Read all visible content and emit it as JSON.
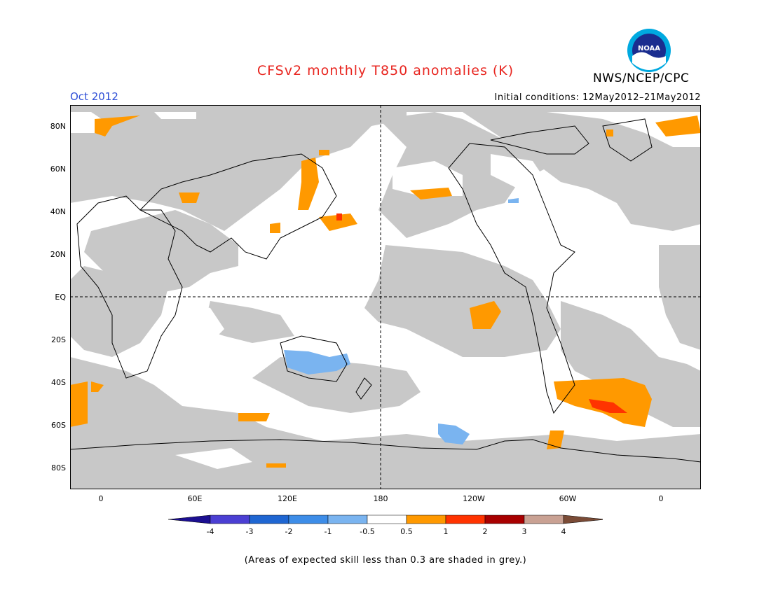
{
  "title": "CFSv2 monthly T850 anomalies (K)",
  "agency": "NWS/NCEP/CPC",
  "logo_text": "NOAA",
  "valid_month": "Oct 2012",
  "initial_conditions": "Initial conditions: 12May2012–21May2012",
  "footnote": "(Areas of expected skill less than 0.3 are shaded in grey.)",
  "lat_labels": [
    "80N",
    "60N",
    "40N",
    "20N",
    "EQ",
    "20S",
    "40S",
    "60S",
    "80S"
  ],
  "lon_labels": [
    "0",
    "60E",
    "120E",
    "180",
    "120W",
    "60W",
    "0"
  ],
  "colorbar": {
    "labels": [
      "-4",
      "-3",
      "-2",
      "-1",
      "-0.5",
      "0.5",
      "1",
      "2",
      "3",
      "4"
    ],
    "colors": [
      "#1c0f91",
      "#4b3fd3",
      "#1f66d2",
      "#3d8de8",
      "#7ab4f0",
      "#ffffff",
      "#ff9900",
      "#ff3300",
      "#a80000",
      "#c9a193",
      "#7a4b36"
    ]
  },
  "colors": {
    "title": "#e8251f",
    "month": "#2f4fd6",
    "low_skill_grey": "#c8c8c8",
    "anomaly_pos_1": "#ff9900",
    "anomaly_pos_2": "#ff3300",
    "anomaly_neg_1": "#7ab4f0"
  }
}
